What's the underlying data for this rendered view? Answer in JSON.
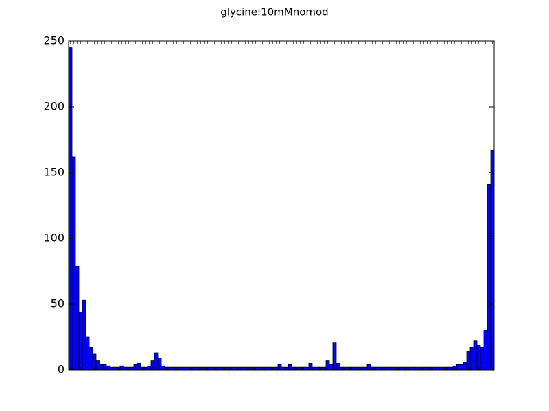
{
  "chart_data": {
    "type": "bar",
    "title": "glycine:10mMnomod",
    "categories": [
      null,
      null,
      null,
      null,
      null,
      null,
      null,
      null,
      null,
      null,
      null,
      null,
      null,
      null,
      null,
      null,
      null,
      null,
      null,
      null,
      null,
      null,
      null,
      null,
      null,
      null,
      null,
      null,
      null,
      null,
      null,
      null,
      null,
      null,
      null,
      null,
      null,
      null,
      null,
      null,
      null,
      null,
      null,
      null,
      null,
      null,
      null,
      null,
      null,
      null,
      null,
      null,
      null,
      null,
      null,
      null,
      null,
      null,
      null,
      null,
      null,
      null,
      null,
      null,
      null,
      null,
      null,
      null,
      null,
      null,
      null,
      null,
      null,
      null,
      null,
      null,
      null,
      null,
      null,
      null,
      null,
      null,
      null,
      null,
      null,
      null,
      null,
      null,
      null,
      null,
      null,
      null,
      null,
      null,
      null,
      null,
      null,
      null,
      null,
      null,
      null,
      null,
      null,
      null,
      null,
      null,
      null,
      null,
      null,
      null,
      null,
      null,
      null,
      null,
      null,
      null,
      null,
      null,
      null,
      null,
      null,
      null,
      null,
      null
    ],
    "values": [
      245,
      162,
      79,
      44,
      53,
      25,
      17,
      12,
      7,
      4,
      4,
      3,
      2,
      2,
      2,
      3,
      2,
      2,
      2,
      4,
      5,
      2,
      2,
      3,
      7,
      13,
      9,
      3,
      2,
      2,
      2,
      2,
      2,
      2,
      2,
      2,
      2,
      2,
      2,
      2,
      2,
      2,
      2,
      2,
      2,
      2,
      2,
      2,
      2,
      2,
      2,
      2,
      2,
      2,
      2,
      2,
      2,
      2,
      2,
      2,
      2,
      4,
      2,
      2,
      4,
      2,
      2,
      2,
      2,
      2,
      5,
      2,
      2,
      2,
      2,
      7,
      4,
      21,
      5,
      2,
      2,
      2,
      2,
      2,
      2,
      2,
      2,
      4,
      2,
      2,
      2,
      2,
      2,
      2,
      2,
      2,
      2,
      2,
      2,
      2,
      2,
      2,
      2,
      2,
      2,
      2,
      2,
      2,
      2,
      2,
      2,
      2,
      3,
      4,
      4,
      6,
      14,
      17,
      22,
      19,
      17,
      30,
      141,
      167
    ],
    "color": "#0000ff",
    "ylim": [
      0,
      250
    ],
    "yticks": [
      0,
      50,
      100,
      150,
      200,
      250
    ],
    "grid": false
  }
}
